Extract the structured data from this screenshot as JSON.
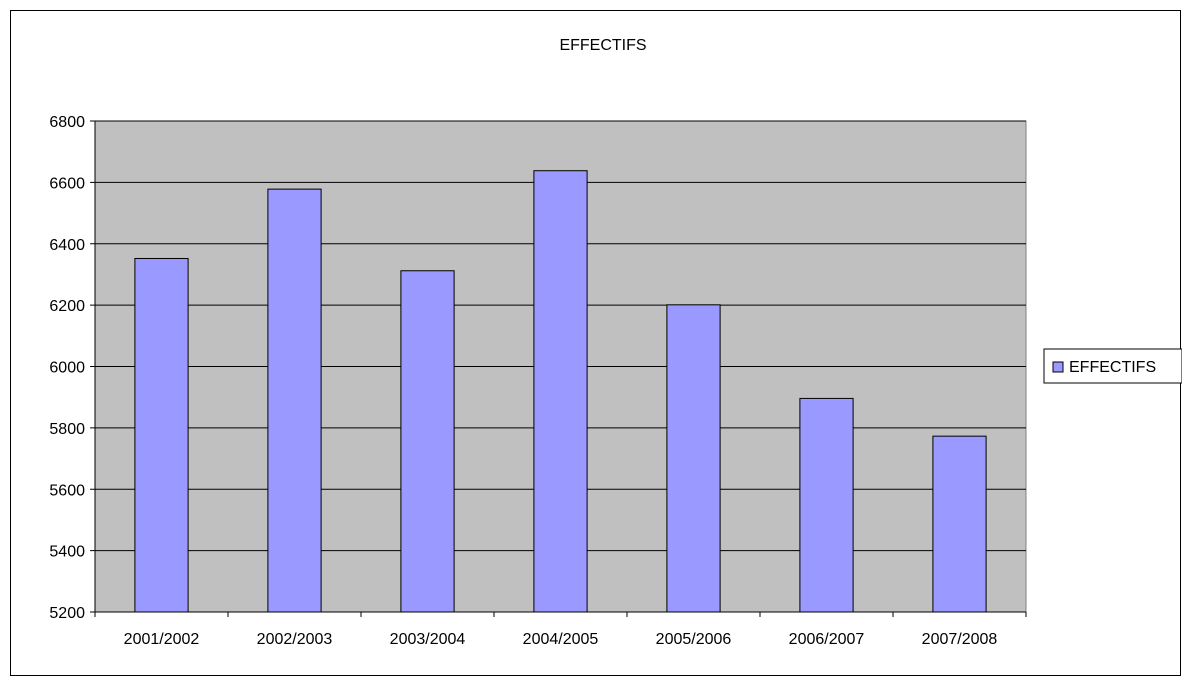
{
  "chart_data": {
    "type": "bar",
    "title": "EFFECTIFS",
    "xlabel": "",
    "ylabel": "",
    "categories": [
      "2001/2002",
      "2002/2003",
      "2003/2004",
      "2004/2005",
      "2005/2006",
      "2006/2007",
      "2007/2008"
    ],
    "series": [
      {
        "name": "EFFECTIFS",
        "values": [
          6352,
          6578,
          6312,
          6638,
          6201,
          5896,
          5773
        ]
      }
    ],
    "ylim": [
      5200,
      6800
    ],
    "yticks": [
      5200,
      5400,
      5600,
      5800,
      6000,
      6200,
      6400,
      6600,
      6800
    ],
    "grid": true,
    "legend_position": "right",
    "colors": {
      "bar": "#9999ff",
      "plot_background": "#c0c0c0",
      "gridline": "#000000"
    }
  }
}
